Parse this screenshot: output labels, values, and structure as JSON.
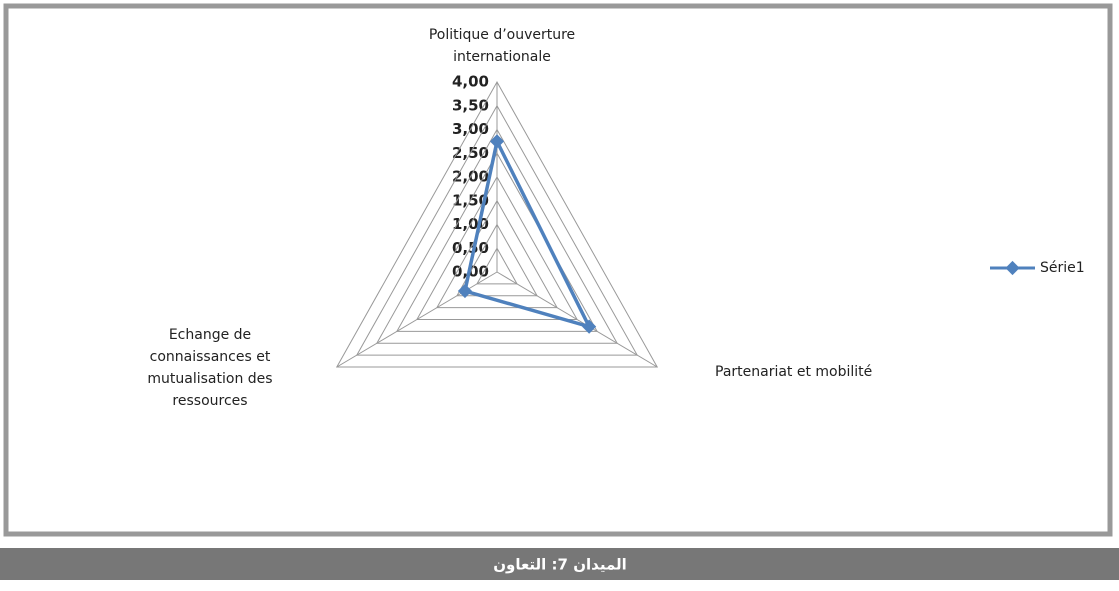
{
  "chart_data": {
    "type": "radar",
    "categories": [
      "Politique d’ouverture internationale",
      "Partenariat et mobilité",
      "Echange de connaissances et mutualisation des ressources"
    ],
    "series": [
      {
        "name": "Série1",
        "color": "#4f81bd",
        "values": [
          2.75,
          2.3,
          0.8
        ]
      }
    ],
    "ylim": [
      0,
      4
    ],
    "yticks": [
      {
        "value": 0,
        "label": "0,00"
      },
      {
        "value": 0.5,
        "label": "0,50"
      },
      {
        "value": 1,
        "label": "1,00"
      },
      {
        "value": 1.5,
        "label": "1,50"
      },
      {
        "value": 2,
        "label": "2,00"
      },
      {
        "value": 2.5,
        "label": "2,50"
      },
      {
        "value": 3,
        "label": "3,00"
      },
      {
        "value": 3.5,
        "label": "3,50"
      },
      {
        "value": 4,
        "label": "4,00"
      }
    ],
    "grid": true,
    "legend": "right"
  },
  "caption": "الميدان 7: التعاون"
}
